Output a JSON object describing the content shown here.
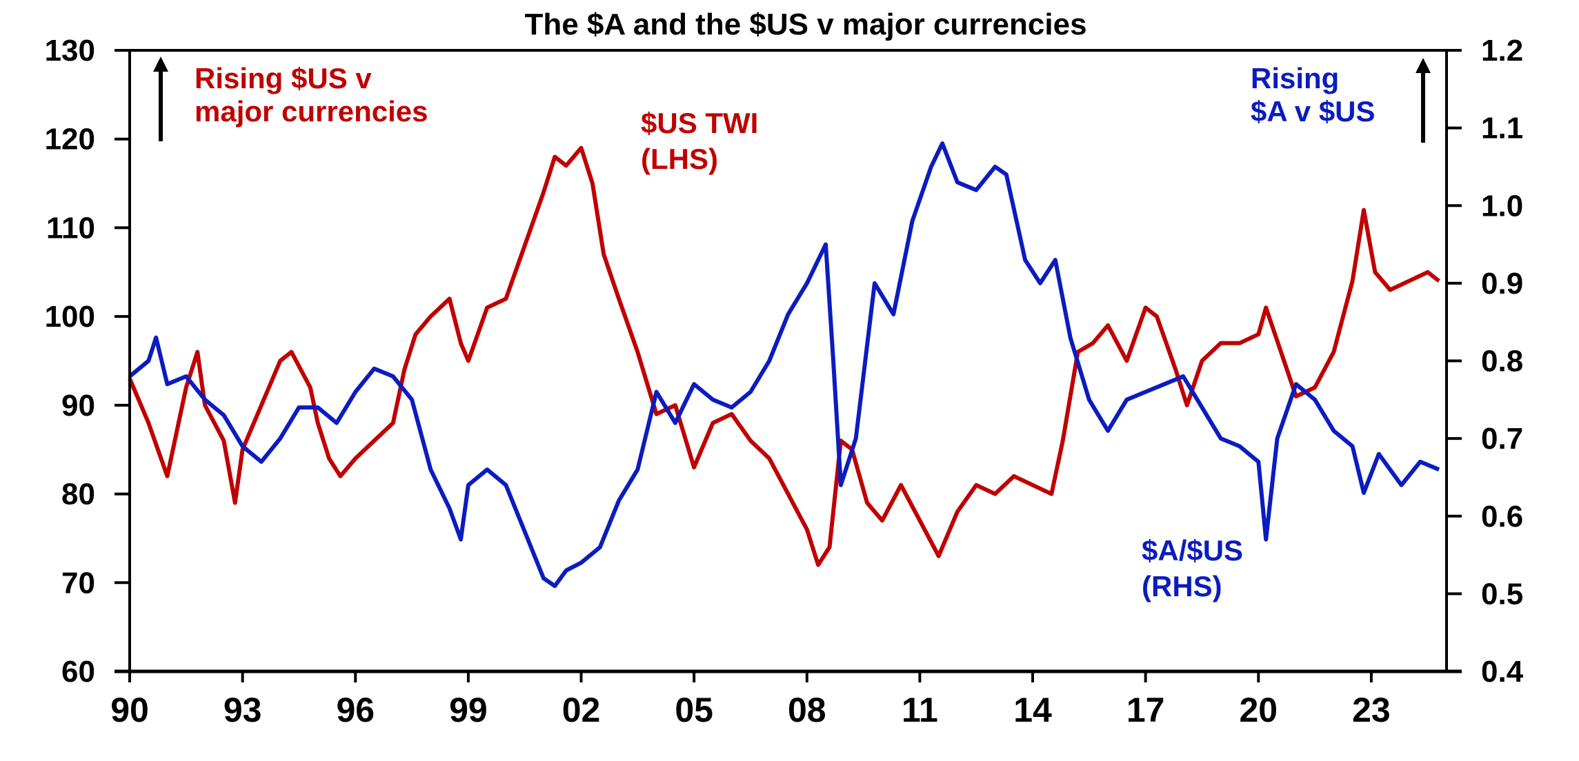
{
  "chart_data": {
    "type": "line",
    "title": "The $A and the $US v major currencies",
    "xlabel": "",
    "x_ticks": [
      "90",
      "93",
      "96",
      "99",
      "02",
      "05",
      "08",
      "11",
      "14",
      "17",
      "20",
      "23"
    ],
    "x_tick_years": [
      1990,
      1993,
      1996,
      1999,
      2002,
      2005,
      2008,
      2011,
      2014,
      2017,
      2020,
      2023
    ],
    "xlim": [
      1990,
      2025
    ],
    "y_left": {
      "ylim": [
        60,
        130
      ],
      "ticks": [
        "130",
        "120",
        "110",
        "100",
        "90",
        "80",
        "70",
        "60"
      ],
      "tick_values": [
        130,
        120,
        110,
        100,
        90,
        80,
        70,
        60
      ]
    },
    "y_right": {
      "ylim": [
        0.4,
        1.2
      ],
      "ticks": [
        "1.2",
        "1.1",
        "1.0",
        "0.9",
        "0.8",
        "0.7",
        "0.6",
        "0.5",
        "0.4"
      ],
      "tick_values": [
        1.2,
        1.1,
        1.0,
        0.9,
        0.8,
        0.7,
        0.6,
        0.5,
        0.4
      ]
    },
    "grid": false,
    "annotations": {
      "left_arrow_text": [
        "Rising $US v",
        "major currencies"
      ],
      "right_arrow_text": [
        "Rising",
        "$A v $US"
      ],
      "twi_label": [
        "$US TWI",
        "(LHS)"
      ],
      "aud_label": [
        "$A/$US",
        "(RHS)"
      ]
    },
    "series": [
      {
        "name": "$US TWI (LHS)",
        "axis": "left",
        "color": "#c00000",
        "x": [
          1990,
          1990.5,
          1991,
          1991.5,
          1991.8,
          1992,
          1992.5,
          1992.8,
          1993,
          1993.5,
          1994,
          1994.3,
          1994.8,
          1995,
          1995.3,
          1995.6,
          1996,
          1996.5,
          1997,
          1997.3,
          1997.6,
          1998,
          1998.5,
          1998.8,
          1999,
          1999.5,
          2000,
          2000.5,
          2001,
          2001.3,
          2001.6,
          2002,
          2002.3,
          2002.6,
          2003,
          2003.5,
          2004,
          2004.5,
          2005,
          2005.5,
          2006,
          2006.5,
          2007,
          2007.5,
          2008,
          2008.3,
          2008.6,
          2008.9,
          2009.2,
          2009.6,
          2010,
          2010.5,
          2011,
          2011.5,
          2012,
          2012.5,
          2013,
          2013.5,
          2014,
          2014.5,
          2014.8,
          2015.2,
          2015.6,
          2016,
          2016.5,
          2017,
          2017.3,
          2017.8,
          2018.1,
          2018.5,
          2019,
          2019.5,
          2020,
          2020.2,
          2020.6,
          2021,
          2021.5,
          2022,
          2022.5,
          2022.8,
          2023.1,
          2023.5,
          2024,
          2024.5,
          2024.8
        ],
        "values": [
          93,
          88,
          82,
          92,
          96,
          90,
          86,
          79,
          85,
          90,
          95,
          96,
          92,
          88,
          84,
          82,
          84,
          86,
          88,
          94,
          98,
          100,
          102,
          97,
          95,
          101,
          102,
          108,
          114,
          118,
          117,
          119,
          115,
          107,
          102,
          96,
          89,
          90,
          83,
          88,
          89,
          86,
          84,
          80,
          76,
          72,
          74,
          86,
          85,
          79,
          77,
          81,
          77,
          73,
          78,
          81,
          80,
          82,
          81,
          80,
          86,
          96,
          97,
          99,
          95,
          101,
          100,
          94,
          90,
          95,
          97,
          97,
          98,
          101,
          96,
          91,
          92,
          96,
          104,
          112,
          105,
          103,
          104,
          105,
          104
        ]
      },
      {
        "name": "$A/$US (RHS)",
        "axis": "right",
        "color": "#0b1cbf",
        "x": [
          1990,
          1990.5,
          1990.7,
          1991,
          1991.5,
          1992,
          1992.5,
          1993,
          1993.5,
          1994,
          1994.5,
          1995,
          1995.5,
          1996,
          1996.5,
          1997,
          1997.5,
          1998,
          1998.5,
          1998.8,
          1999,
          1999.5,
          2000,
          2000.5,
          2001,
          2001.3,
          2001.6,
          2002,
          2002.5,
          2003,
          2003.5,
          2004,
          2004.5,
          2005,
          2005.5,
          2006,
          2006.5,
          2007,
          2007.5,
          2008,
          2008.5,
          2008.7,
          2008.9,
          2009.3,
          2009.8,
          2010.3,
          2010.8,
          2011.3,
          2011.6,
          2012,
          2012.5,
          2013,
          2013.3,
          2013.8,
          2014.2,
          2014.6,
          2015,
          2015.5,
          2016,
          2016.5,
          2017,
          2017.5,
          2018,
          2018.5,
          2019,
          2019.5,
          2020,
          2020.2,
          2020.5,
          2021,
          2021.5,
          2022,
          2022.5,
          2022.8,
          2023.2,
          2023.8,
          2024.3,
          2024.8
        ],
        "values": [
          0.78,
          0.8,
          0.83,
          0.77,
          0.78,
          0.75,
          0.73,
          0.69,
          0.67,
          0.7,
          0.74,
          0.74,
          0.72,
          0.76,
          0.79,
          0.78,
          0.75,
          0.66,
          0.61,
          0.57,
          0.64,
          0.66,
          0.64,
          0.58,
          0.52,
          0.51,
          0.53,
          0.54,
          0.56,
          0.62,
          0.66,
          0.76,
          0.72,
          0.77,
          0.75,
          0.74,
          0.76,
          0.8,
          0.86,
          0.9,
          0.95,
          0.8,
          0.64,
          0.7,
          0.9,
          0.86,
          0.98,
          1.05,
          1.08,
          1.03,
          1.02,
          1.05,
          1.04,
          0.93,
          0.9,
          0.93,
          0.83,
          0.75,
          0.71,
          0.75,
          0.76,
          0.77,
          0.78,
          0.74,
          0.7,
          0.69,
          0.67,
          0.57,
          0.7,
          0.77,
          0.75,
          0.71,
          0.69,
          0.63,
          0.68,
          0.64,
          0.67,
          0.66
        ]
      }
    ]
  }
}
